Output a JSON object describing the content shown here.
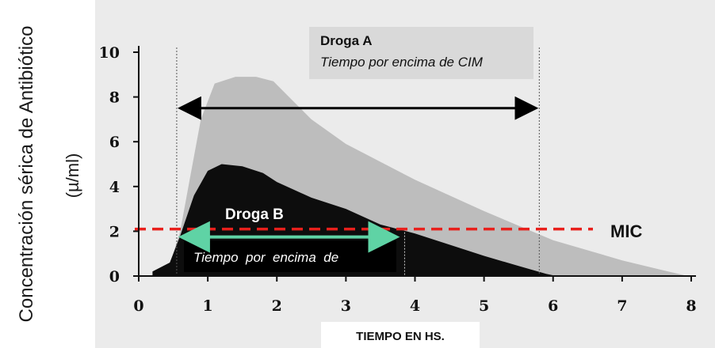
{
  "chart_data": {
    "type": "area",
    "ylabel": "Concentración sérica de Antibiótico",
    "ylabel_unit": "(µ/ml)",
    "xlabel": "TIEMPO EN HS.",
    "xlim": [
      0,
      8
    ],
    "ylim": [
      0,
      10
    ],
    "x_ticks": [
      "0",
      "1",
      "2",
      "3",
      "4",
      "5",
      "6",
      "7",
      "8"
    ],
    "y_ticks": [
      "0",
      "2",
      "4",
      "6",
      "8",
      "10"
    ],
    "series": [
      {
        "name": "Droga A",
        "color": "#bdbdbd",
        "x": [
          0.2,
          0.45,
          0.6,
          0.75,
          0.9,
          1.1,
          1.4,
          1.7,
          1.95,
          2.5,
          3.0,
          4.0,
          5.0,
          6.0,
          7.0,
          7.6,
          7.95
        ],
        "y": [
          0.0,
          0.5,
          2.0,
          4.5,
          7.0,
          8.6,
          8.9,
          8.9,
          8.7,
          7.0,
          5.9,
          4.3,
          2.9,
          1.6,
          0.7,
          0.25,
          0.0
        ]
      },
      {
        "name": "Droga B",
        "color": "#0d0d0d",
        "x": [
          0.2,
          0.45,
          0.6,
          0.8,
          1.0,
          1.2,
          1.5,
          1.8,
          2.0,
          2.5,
          3.0,
          3.5,
          4.0,
          4.5,
          5.0,
          5.5,
          5.9,
          6.05
        ],
        "y": [
          0.2,
          0.6,
          1.8,
          3.6,
          4.7,
          5.0,
          4.9,
          4.6,
          4.2,
          3.5,
          3.0,
          2.3,
          1.9,
          1.4,
          0.9,
          0.45,
          0.1,
          0.0
        ]
      }
    ],
    "mic_level": 2.1,
    "mic_label": "MIC",
    "annotations": {
      "drug_a": {
        "title": "Droga A",
        "subtitle": "Tiempo por encima de CIM",
        "from_x": 0.55,
        "to_x": 5.8
      },
      "drug_b": {
        "title": "Droga B",
        "subtitle": "Tiempo  por  encima  de",
        "from_x": 0.55,
        "to_x": 3.85
      }
    },
    "colors": {
      "mic_line": "#e8201c",
      "arrow_b": "#5fd3a5",
      "arrow_a": "#000000"
    },
    "grid": false
  }
}
